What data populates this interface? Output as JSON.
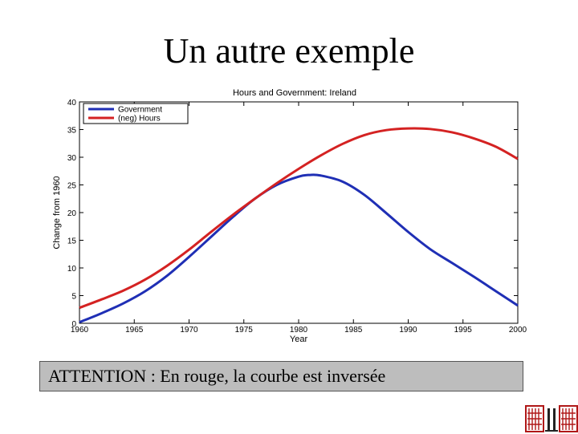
{
  "slide": {
    "title": "Un autre exemple",
    "note": "ATTENTION : En rouge, la courbe est inversée"
  },
  "colors": {
    "government": "#1f2fb5",
    "hours": "#d42222",
    "note_bg": "#bdbdbd",
    "logo": "#b01818"
  },
  "logo": {
    "icon": "university-logo-icon"
  },
  "chart_data": {
    "type": "line",
    "title": "Hours and Government: Ireland",
    "xlabel": "Year",
    "ylabel": "Change from 1960",
    "xlim": [
      1960,
      2000
    ],
    "ylim": [
      0,
      40
    ],
    "xticks": [
      1960,
      1965,
      1970,
      1975,
      1980,
      1985,
      1990,
      1995,
      2000
    ],
    "yticks": [
      0,
      5,
      10,
      15,
      20,
      25,
      30,
      35,
      40
    ],
    "grid": false,
    "legend_position": "top-left",
    "series": [
      {
        "name": "Government",
        "color": "#1f2fb5",
        "x": [
          1960,
          1962,
          1964,
          1966,
          1968,
          1970,
          1972,
          1974,
          1976,
          1978,
          1980,
          1981,
          1982,
          1984,
          1986,
          1988,
          1990,
          1992,
          1994,
          1996,
          1998,
          2000
        ],
        "y": [
          0.2,
          1.8,
          3.6,
          5.8,
          8.6,
          12.0,
          15.6,
          19.2,
          22.5,
          25.0,
          26.5,
          26.8,
          26.7,
          25.6,
          23.2,
          19.9,
          16.5,
          13.4,
          10.9,
          8.4,
          5.8,
          3.2
        ]
      },
      {
        "name": "(neg) Hours",
        "color": "#d42222",
        "x": [
          1960,
          1962,
          1964,
          1966,
          1968,
          1970,
          1972,
          1974,
          1976,
          1978,
          1980,
          1982,
          1984,
          1986,
          1988,
          1990,
          1992,
          1994,
          1996,
          1998,
          2000
        ],
        "y": [
          2.8,
          4.3,
          5.9,
          7.9,
          10.4,
          13.3,
          16.5,
          19.6,
          22.5,
          25.3,
          27.9,
          30.3,
          32.4,
          34.0,
          34.9,
          35.2,
          35.1,
          34.5,
          33.4,
          31.9,
          29.7
        ]
      }
    ]
  }
}
